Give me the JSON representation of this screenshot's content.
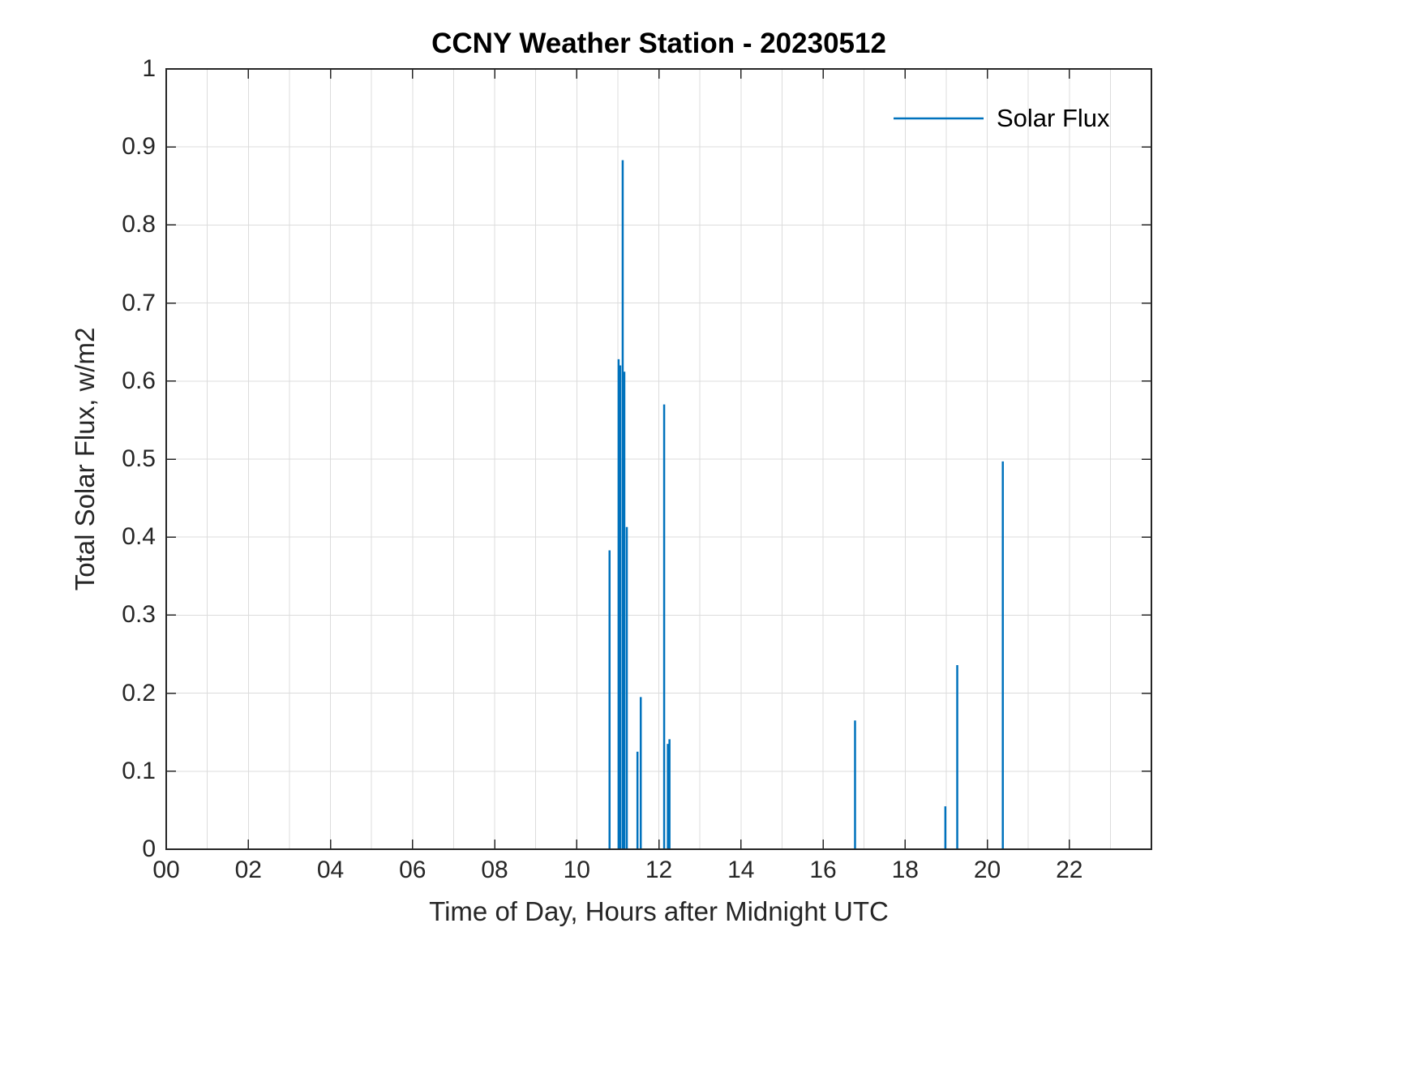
{
  "colors": {
    "line": "#0072BD",
    "grid": "#dcdcdc",
    "axis": "#262626",
    "background": "#ffffff"
  },
  "chart_data": {
    "type": "line",
    "title": "CCNY Weather Station - 20230512",
    "xlabel": "Time of Day, Hours after Midnight UTC",
    "ylabel": "Total Solar Flux, w/m2",
    "xlim": [
      0,
      24
    ],
    "ylim": [
      0,
      1
    ],
    "legend": [
      "Solar Flux"
    ],
    "grid": {
      "x_step": 1,
      "y_step": 0.1
    },
    "x_ticks": {
      "values": [
        0,
        2,
        4,
        6,
        8,
        10,
        12,
        14,
        16,
        18,
        20,
        22
      ],
      "labels": [
        "00",
        "02",
        "04",
        "06",
        "08",
        "10",
        "12",
        "14",
        "16",
        "18",
        "20",
        "22"
      ]
    },
    "y_ticks": {
      "values": [
        0,
        0.1,
        0.2,
        0.3,
        0.4,
        0.5,
        0.6,
        0.7,
        0.8,
        0.9,
        1
      ],
      "labels": [
        "0",
        "0.1",
        "0.2",
        "0.3",
        "0.4",
        "0.5",
        "0.6",
        "0.7",
        "0.8",
        "0.9",
        "1"
      ]
    },
    "series": [
      {
        "name": "Solar Flux",
        "color": "#0072BD",
        "points": [
          [
            10.8,
            0.383
          ],
          [
            11.02,
            0.628
          ],
          [
            11.06,
            0.62
          ],
          [
            11.12,
            0.883
          ],
          [
            11.16,
            0.612
          ],
          [
            11.22,
            0.413
          ],
          [
            11.48,
            0.125
          ],
          [
            11.56,
            0.195
          ],
          [
            12.13,
            0.57
          ],
          [
            12.22,
            0.135
          ],
          [
            12.26,
            0.141
          ],
          [
            16.78,
            0.165
          ],
          [
            18.98,
            0.055
          ],
          [
            19.27,
            0.236
          ],
          [
            20.38,
            0.497
          ]
        ]
      }
    ]
  }
}
